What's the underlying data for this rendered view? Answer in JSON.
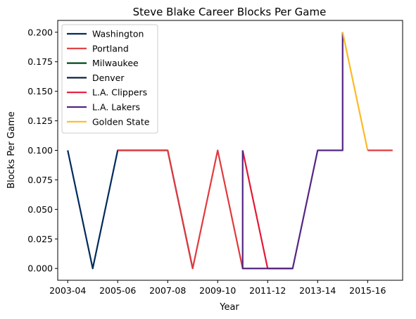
{
  "chart_data": {
    "type": "line",
    "title": "Steve Blake Career Blocks Per Game",
    "xlabel": "Year",
    "ylabel": "Blocks Per Game",
    "x_ticks": [
      "2003-04",
      "2005-06",
      "2007-08",
      "2009-10",
      "2011-12",
      "2013-14",
      "2015-16"
    ],
    "y_ticks": [
      "0.000",
      "0.025",
      "0.050",
      "0.075",
      "0.100",
      "0.125",
      "0.150",
      "0.175",
      "0.200"
    ],
    "xlim": [
      2002.6,
      2016.4
    ],
    "ylim": [
      -0.01,
      0.21
    ],
    "grid": false,
    "legend_position": "upper left",
    "series": [
      {
        "name": "Washington",
        "color": "#002B5C",
        "points": [
          [
            2003,
            0.1
          ],
          [
            2004,
            0.0
          ],
          [
            2005,
            0.1
          ],
          [
            2006,
            0.1
          ],
          [
            2007,
            0.1
          ],
          [
            2008,
            0.0
          ]
        ]
      },
      {
        "name": "Portland",
        "color": "#E03A3E",
        "points": [
          [
            2005,
            0.1
          ],
          [
            2006,
            0.1
          ],
          [
            2007,
            0.1
          ],
          [
            2008,
            0.0
          ],
          [
            2009,
            0.1
          ],
          [
            2010,
            0.0
          ]
        ]
      },
      {
        "name": "Milwaukee",
        "color": "#00471B",
        "points": []
      },
      {
        "name": "Denver",
        "color": "#0E2240",
        "points": []
      },
      {
        "name": "L.A. Clippers",
        "color": "#E31837",
        "points": [
          [
            2010,
            0.1
          ],
          [
            2011,
            0.0
          ],
          [
            2012,
            0.0
          ]
        ]
      },
      {
        "name": "L.A. Lakers",
        "color": "#552583",
        "points": [
          [
            2010,
            0.1
          ],
          [
            2010,
            0.0
          ],
          [
            2011,
            0.0
          ],
          [
            2012,
            0.0
          ],
          [
            2013,
            0.1
          ],
          [
            2014,
            0.1
          ],
          [
            2014,
            0.2
          ]
        ]
      },
      {
        "name": "Golden State",
        "color": "#FDB927",
        "points": [
          [
            2014,
            0.2
          ],
          [
            2015,
            0.1
          ]
        ]
      },
      {
        "name": "Portland",
        "color": "#E03A3E",
        "points": [
          [
            2015,
            0.1
          ],
          [
            2016,
            0.1
          ]
        ]
      }
    ]
  }
}
